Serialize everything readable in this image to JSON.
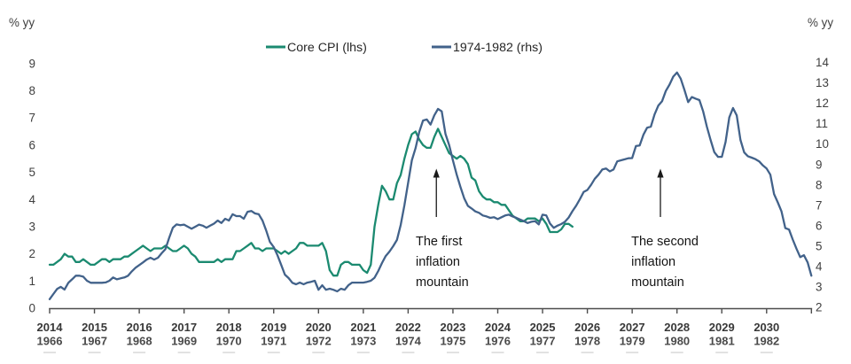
{
  "chart_data": {
    "type": "line",
    "title": "",
    "legend": [
      {
        "label": "Core CPI (lhs)",
        "color": "#1b8a70"
      },
      {
        "label": "1974-1982 (rhs)",
        "color": "#42628a"
      }
    ],
    "left_axis": {
      "label": "% yy",
      "min": 0,
      "max": 9,
      "ticks": [
        0,
        1,
        2,
        3,
        4,
        5,
        6,
        7,
        8,
        9
      ]
    },
    "right_axis": {
      "label": "% yy",
      "min": 2,
      "max": 14,
      "ticks": [
        2,
        3,
        4,
        5,
        6,
        7,
        8,
        9,
        10,
        11,
        12,
        13,
        14
      ]
    },
    "x_axis": {
      "top_years": [
        2014,
        2015,
        2016,
        2017,
        2018,
        2019,
        2020,
        2021,
        2022,
        2023,
        2024,
        2025,
        2026,
        2027,
        2028,
        2029,
        2030
      ],
      "bottom_years": [
        1966,
        1967,
        1968,
        1969,
        1970,
        1971,
        1972,
        1973,
        1974,
        1975,
        1976,
        1977,
        1978,
        1979,
        1980,
        1981,
        1982
      ]
    },
    "series": [
      {
        "name": "Core CPI (lhs)",
        "axis": "left",
        "color": "#1b8a70",
        "start_year": 2014,
        "monthly_values": [
          1.6,
          1.6,
          1.7,
          1.8,
          2.0,
          1.9,
          1.9,
          1.7,
          1.7,
          1.8,
          1.7,
          1.6,
          1.6,
          1.7,
          1.8,
          1.8,
          1.7,
          1.8,
          1.8,
          1.8,
          1.9,
          1.9,
          2.0,
          2.1,
          2.2,
          2.3,
          2.2,
          2.1,
          2.2,
          2.2,
          2.2,
          2.3,
          2.2,
          2.1,
          2.1,
          2.2,
          2.3,
          2.2,
          2.0,
          1.9,
          1.7,
          1.7,
          1.7,
          1.7,
          1.7,
          1.8,
          1.7,
          1.8,
          1.8,
          1.8,
          2.1,
          2.1,
          2.2,
          2.3,
          2.4,
          2.2,
          2.2,
          2.1,
          2.2,
          2.2,
          2.2,
          2.1,
          2.0,
          2.1,
          2.0,
          2.1,
          2.2,
          2.4,
          2.4,
          2.3,
          2.3,
          2.3,
          2.3,
          2.4,
          2.1,
          1.4,
          1.2,
          1.2,
          1.6,
          1.7,
          1.7,
          1.6,
          1.6,
          1.6,
          1.4,
          1.3,
          1.6,
          3.0,
          3.8,
          4.5,
          4.3,
          4.0,
          4.0,
          4.6,
          4.9,
          5.5,
          6.0,
          6.4,
          6.5,
          6.2,
          6.0,
          5.9,
          5.9,
          6.3,
          6.6,
          6.3,
          6.0,
          5.7,
          5.6,
          5.5,
          5.6,
          5.5,
          5.3,
          4.8,
          4.7,
          4.3,
          4.1,
          4.0,
          4.0,
          3.9,
          3.9,
          3.8,
          3.8,
          3.6,
          3.4,
          3.3,
          3.2,
          3.2,
          3.3,
          3.3,
          3.3,
          3.2,
          3.3,
          3.1,
          2.8,
          2.8,
          2.8,
          2.9,
          3.1,
          3.1,
          3.0
        ]
      },
      {
        "name": "1974-1982 (rhs)",
        "axis": "right",
        "color": "#42628a",
        "start_year": 1966,
        "monthly_values": [
          2.4,
          2.65,
          2.9,
          3.0,
          2.87,
          3.2,
          3.37,
          3.55,
          3.55,
          3.5,
          3.3,
          3.2,
          3.2,
          3.2,
          3.2,
          3.22,
          3.3,
          3.46,
          3.37,
          3.42,
          3.46,
          3.55,
          3.76,
          3.94,
          4.07,
          4.2,
          4.34,
          4.43,
          4.34,
          4.43,
          4.65,
          4.85,
          5.4,
          5.9,
          6.06,
          6.02,
          6.05,
          5.95,
          5.85,
          5.95,
          6.05,
          6.0,
          5.9,
          6.0,
          6.1,
          6.25,
          6.13,
          6.34,
          6.25,
          6.56,
          6.47,
          6.47,
          6.34,
          6.68,
          6.72,
          6.6,
          6.56,
          6.25,
          5.76,
          5.2,
          4.95,
          4.55,
          4.08,
          3.6,
          3.43,
          3.2,
          3.13,
          3.21,
          3.13,
          3.21,
          3.25,
          3.3,
          2.86,
          3.08,
          2.86,
          2.91,
          2.86,
          2.78,
          2.91,
          2.86,
          3.08,
          3.21,
          3.21,
          3.21,
          3.21,
          3.25,
          3.3,
          3.45,
          3.78,
          4.17,
          4.51,
          4.73,
          5.0,
          5.3,
          6.03,
          7.0,
          8.1,
          9.2,
          9.8,
          10.6,
          11.15,
          11.2,
          10.95,
          11.4,
          11.72,
          11.6,
          10.5,
          9.95,
          9.2,
          8.5,
          7.9,
          7.35,
          6.97,
          6.84,
          6.7,
          6.63,
          6.5,
          6.45,
          6.38,
          6.41,
          6.32,
          6.41,
          6.5,
          6.54,
          6.45,
          6.38,
          6.3,
          6.22,
          6.13,
          6.19,
          6.22,
          6.06,
          6.54,
          6.5,
          6.1,
          5.89,
          6.0,
          6.08,
          6.19,
          6.4,
          6.71,
          6.98,
          7.3,
          7.65,
          7.75,
          8.0,
          8.3,
          8.5,
          8.75,
          8.8,
          8.66,
          8.75,
          9.15,
          9.2,
          9.25,
          9.3,
          9.31,
          9.9,
          9.93,
          10.45,
          10.8,
          10.85,
          11.45,
          11.88,
          12.1,
          12.6,
          12.91,
          13.3,
          13.5,
          13.2,
          12.65,
          12.05,
          12.3,
          12.22,
          12.15,
          11.6,
          10.85,
          10.2,
          9.6,
          9.37,
          9.37,
          10.1,
          11.3,
          11.76,
          11.4,
          10.2,
          9.59,
          9.4,
          9.33,
          9.26,
          9.15,
          8.95,
          8.8,
          8.5,
          7.55,
          7.14,
          6.7,
          5.88,
          5.81,
          5.32,
          4.87,
          4.46,
          4.55,
          4.2,
          3.55
        ]
      }
    ],
    "annotations": [
      {
        "lines": [
          "The first",
          "inflation",
          "mountain"
        ],
        "arrow_year": 2022.63,
        "text_year": 2022.17
      },
      {
        "lines": [
          "The second",
          "inflation",
          "mountain"
        ],
        "arrow_year": 2027.63,
        "text_year": 2026.98
      }
    ]
  }
}
